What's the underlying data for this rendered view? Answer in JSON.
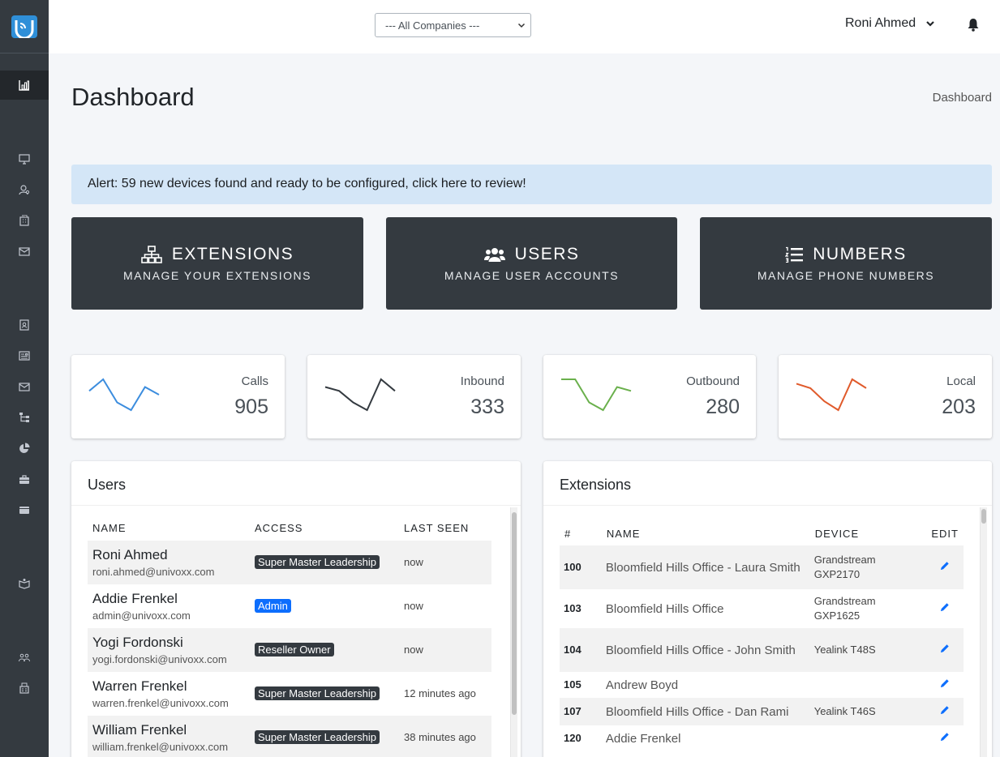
{
  "sidebar": {
    "logo_icon": "univoxx-logo",
    "items": [
      {
        "icon": "bar-chart-icon",
        "active": true
      },
      {
        "icon": "monitor-icon"
      },
      {
        "icon": "user-search-icon"
      },
      {
        "icon": "building-icon"
      },
      {
        "icon": "envelope-icon"
      },
      {
        "icon": "contact-book-icon"
      },
      {
        "icon": "newspaper-icon"
      },
      {
        "icon": "mail-icon"
      },
      {
        "icon": "sitemap-icon"
      },
      {
        "icon": "pie-chart-icon"
      },
      {
        "icon": "toolbox-icon"
      },
      {
        "icon": "wallet-icon"
      },
      {
        "icon": "book-reader-icon"
      },
      {
        "icon": "group-icon"
      },
      {
        "icon": "fax-icon"
      }
    ]
  },
  "topbar": {
    "company_select": "--- All Companies ---",
    "user_name": "Roni Ahmed"
  },
  "header": {
    "title": "Dashboard",
    "breadcrumb": "Dashboard"
  },
  "alert": {
    "text": "Alert: 59 new devices found and ready to be configured, click here to review!"
  },
  "tiles": [
    {
      "title": "EXTENSIONS",
      "subtitle": "MANAGE YOUR EXTENSIONS",
      "icon": "sitemap-icon"
    },
    {
      "title": "USERS",
      "subtitle": "MANAGE USER ACCOUNTS",
      "icon": "users-icon"
    },
    {
      "title": "NUMBERS",
      "subtitle": "MANAGE PHONE NUMBERS",
      "icon": "list-ol-icon"
    }
  ],
  "stats": [
    {
      "label": "Calls",
      "value": "905",
      "color": "#3c8dde",
      "spark": [
        6,
        9,
        3,
        1,
        7,
        5
      ]
    },
    {
      "label": "Inbound",
      "value": "333",
      "color": "#343a40",
      "spark": [
        6,
        5,
        2,
        0,
        8,
        5
      ]
    },
    {
      "label": "Outbound",
      "value": "280",
      "color": "#6ab04c",
      "spark": [
        8,
        8,
        2,
        0,
        6,
        5
      ]
    },
    {
      "label": "Local",
      "value": "203",
      "color": "#e05a2b",
      "spark": [
        6,
        5,
        2,
        0,
        7,
        5
      ]
    }
  ],
  "users_card": {
    "title": "Users",
    "columns": [
      "NAME",
      "ACCESS",
      "LAST SEEN"
    ],
    "rows": [
      {
        "name": "Roni Ahmed",
        "email": "roni.ahmed@univoxx.com",
        "access": "Super Master Leadership",
        "access_color": "#343a40",
        "seen": "now"
      },
      {
        "name": "Addie Frenkel",
        "email": "admin@univoxx.com",
        "access": "Admin",
        "access_color": "#0d6efd",
        "seen": "now"
      },
      {
        "name": "Yogi Fordonski",
        "email": "yogi.fordonski@univoxx.com",
        "access": "Reseller Owner",
        "access_color": "#343a40",
        "seen": "now"
      },
      {
        "name": "Warren Frenkel",
        "email": "warren.frenkel@univoxx.com",
        "access": "Super Master Leadership",
        "access_color": "#343a40",
        "seen": "12 minutes ago"
      },
      {
        "name": "William Frenkel",
        "email": "william.frenkel@univoxx.com",
        "access": "Super Master Leadership",
        "access_color": "#343a40",
        "seen": "38 minutes ago"
      }
    ]
  },
  "extensions_card": {
    "title": "Extensions",
    "columns": [
      "#",
      "NAME",
      "DEVICE",
      "EDIT"
    ],
    "rows": [
      {
        "num": "100",
        "name": "Bloomfield Hills Office - Laura Smith",
        "device": "Grandstream GXP2170"
      },
      {
        "num": "103",
        "name": "Bloomfield Hills Office",
        "device": "Grandstream GXP1625"
      },
      {
        "num": "104",
        "name": "Bloomfield Hills Office - John Smith",
        "device": "Yealink T48S"
      },
      {
        "num": "105",
        "name": "Andrew Boyd",
        "device": ""
      },
      {
        "num": "107",
        "name": "Bloomfield Hills Office - Dan Rami",
        "device": "Yealink T46S"
      },
      {
        "num": "120",
        "name": "Addie Frenkel",
        "device": ""
      }
    ]
  }
}
